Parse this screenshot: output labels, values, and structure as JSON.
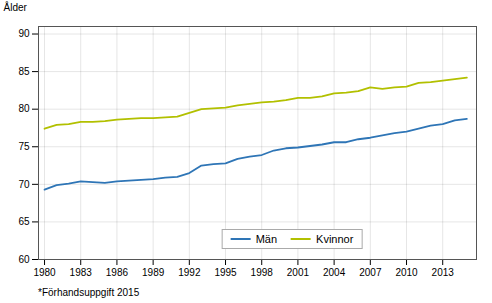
{
  "chart_data": {
    "type": "line",
    "ylabel": "Ålder",
    "footnote": "*Förhandsuppgift 2015",
    "x": [
      1980,
      1981,
      1982,
      1983,
      1984,
      1985,
      1986,
      1987,
      1988,
      1989,
      1990,
      1991,
      1992,
      1993,
      1994,
      1995,
      1996,
      1997,
      1998,
      1999,
      2000,
      2001,
      2002,
      2003,
      2004,
      2005,
      2006,
      2007,
      2008,
      2009,
      2010,
      2011,
      2012,
      2013,
      2014,
      2015
    ],
    "series": [
      {
        "name": "Män",
        "color": "#2e75b6",
        "values": [
          69.3,
          69.9,
          70.1,
          70.4,
          70.3,
          70.2,
          70.4,
          70.5,
          70.6,
          70.7,
          70.9,
          71.0,
          71.5,
          72.5,
          72.7,
          72.8,
          73.4,
          73.7,
          73.9,
          74.5,
          74.8,
          74.9,
          75.1,
          75.3,
          75.6,
          75.6,
          76.0,
          76.2,
          76.5,
          76.8,
          77.0,
          77.4,
          77.8,
          78.0,
          78.5,
          78.7
        ]
      },
      {
        "name": "Kvinnor",
        "color": "#b2c000",
        "values": [
          77.4,
          77.9,
          78.0,
          78.3,
          78.3,
          78.4,
          78.6,
          78.7,
          78.8,
          78.8,
          78.9,
          79.0,
          79.5,
          80.0,
          80.1,
          80.2,
          80.5,
          80.7,
          80.9,
          81.0,
          81.2,
          81.5,
          81.5,
          81.7,
          82.1,
          82.2,
          82.4,
          82.9,
          82.7,
          82.9,
          83.0,
          83.5,
          83.6,
          83.8,
          84.0,
          84.2
        ]
      }
    ],
    "xlim": [
      1979.5,
      2015.8
    ],
    "xticks": [
      1980,
      1983,
      1986,
      1989,
      1992,
      1995,
      1998,
      2001,
      2004,
      2007,
      2010,
      2013
    ],
    "ylim": [
      60,
      91
    ],
    "yticks": [
      60,
      65,
      70,
      75,
      80,
      85,
      90
    ],
    "grid": true,
    "legend": "bottom"
  }
}
